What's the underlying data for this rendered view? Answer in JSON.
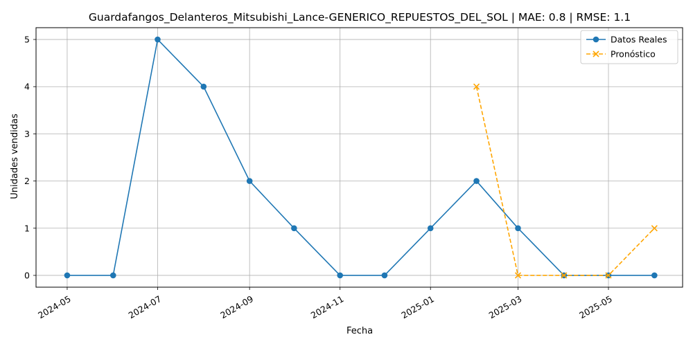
{
  "chart_data": {
    "type": "line",
    "title": "Guardafangos_Delanteros_Mitsubishi_Lance-GENERICO_REPUESTOS_DEL_SOL | MAE: 0.8 | RMSE: 1.1",
    "xlabel": "Fecha",
    "ylabel": "Unidades vendidas",
    "xlim": [
      "2024-04-10",
      "2025-06-20"
    ],
    "ylim": [
      -0.25,
      5.25
    ],
    "x_ticks": [
      "2024-05-01",
      "2024-07-01",
      "2024-09-01",
      "2024-11-01",
      "2025-01-01",
      "2025-03-01",
      "2025-05-01"
    ],
    "x_tick_labels": [
      "2024-05",
      "2024-07",
      "2024-09",
      "2024-11",
      "2025-01",
      "2025-03",
      "2025-05"
    ],
    "y_ticks": [
      0,
      1,
      2,
      3,
      4,
      5
    ],
    "grid": true,
    "legend_position": "top-right",
    "series": [
      {
        "name": "Datos Reales",
        "color": "#1f77b4",
        "line_style": "solid",
        "marker": "circle",
        "x": [
          "2024-05-01",
          "2024-06-01",
          "2024-07-01",
          "2024-08-01",
          "2024-09-01",
          "2024-10-01",
          "2024-11-01",
          "2024-12-01",
          "2025-01-01",
          "2025-02-01",
          "2025-03-01",
          "2025-04-01",
          "2025-05-01",
          "2025-06-01"
        ],
        "values": [
          0,
          0,
          5,
          4,
          2,
          1,
          0,
          0,
          1,
          2,
          1,
          0,
          0,
          0
        ]
      },
      {
        "name": "Pronóstico",
        "color": "#ffa500",
        "line_style": "dashed",
        "marker": "x",
        "x": [
          "2025-02-01",
          "2025-03-01",
          "2025-04-01",
          "2025-05-01",
          "2025-06-01"
        ],
        "values": [
          4,
          0,
          0,
          0,
          1
        ]
      }
    ]
  }
}
